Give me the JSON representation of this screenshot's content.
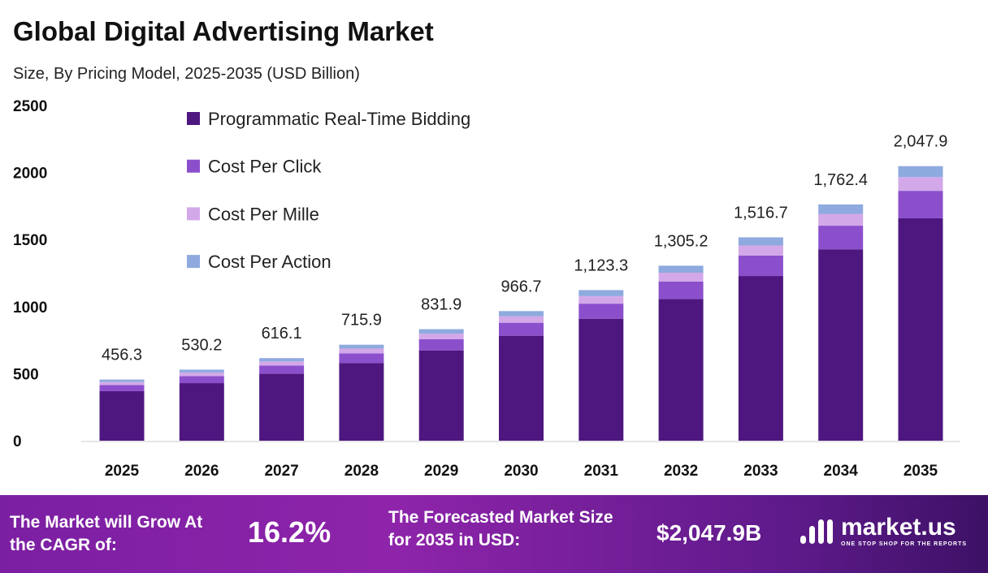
{
  "title": "Global Digital Advertising Market",
  "subtitle": "Size, By Pricing Model, 2025-2035 (USD Billion)",
  "chart_data": {
    "type": "bar",
    "stacked": true,
    "categories": [
      "2025",
      "2026",
      "2027",
      "2028",
      "2029",
      "2030",
      "2031",
      "2032",
      "2033",
      "2034",
      "2035"
    ],
    "totals": [
      "456.3",
      "530.2",
      "616.1",
      "715.9",
      "831.9",
      "966.7",
      "1,123.3",
      "1,305.2",
      "1,516.7",
      "1,762.4",
      "2,047.9"
    ],
    "series": [
      {
        "name": "Programmatic Real-Time Bidding",
        "color": "#4e1780",
        "values": [
          369.6,
          429.5,
          499.0,
          579.9,
          673.8,
          783.0,
          909.9,
          1057.2,
          1228.5,
          1427.5,
          1658.8
        ]
      },
      {
        "name": "Cost Per Click",
        "color": "#8c4fcc",
        "values": [
          45.6,
          53.0,
          61.6,
          71.6,
          83.2,
          96.7,
          112.3,
          130.5,
          151.7,
          176.2,
          204.8
        ]
      },
      {
        "name": "Cost Per Mille",
        "color": "#d3a8e8",
        "values": [
          22.8,
          26.5,
          30.8,
          35.8,
          41.6,
          48.3,
          56.2,
          65.3,
          75.8,
          88.1,
          102.4
        ]
      },
      {
        "name": "Cost Per Action",
        "color": "#8eaadf",
        "values": [
          18.3,
          21.2,
          24.7,
          28.6,
          33.3,
          38.7,
          44.9,
          52.2,
          60.7,
          70.5,
          81.9
        ]
      }
    ],
    "yticks": [
      "0",
      "500",
      "1000",
      "1500",
      "2000",
      "2500"
    ],
    "ylim": [
      0,
      2500
    ],
    "grid": false,
    "legend": "top-left"
  },
  "footer": {
    "cagr_label": "The Market will Grow At the CAGR of:",
    "cagr_value": "16.2%",
    "forecast_label": "The Forecasted Market Size for 2035 in USD:",
    "forecast_value": "$2,047.9B",
    "logo_name": "market.us",
    "logo_tagline": "ONE STOP SHOP FOR THE REPORTS"
  }
}
